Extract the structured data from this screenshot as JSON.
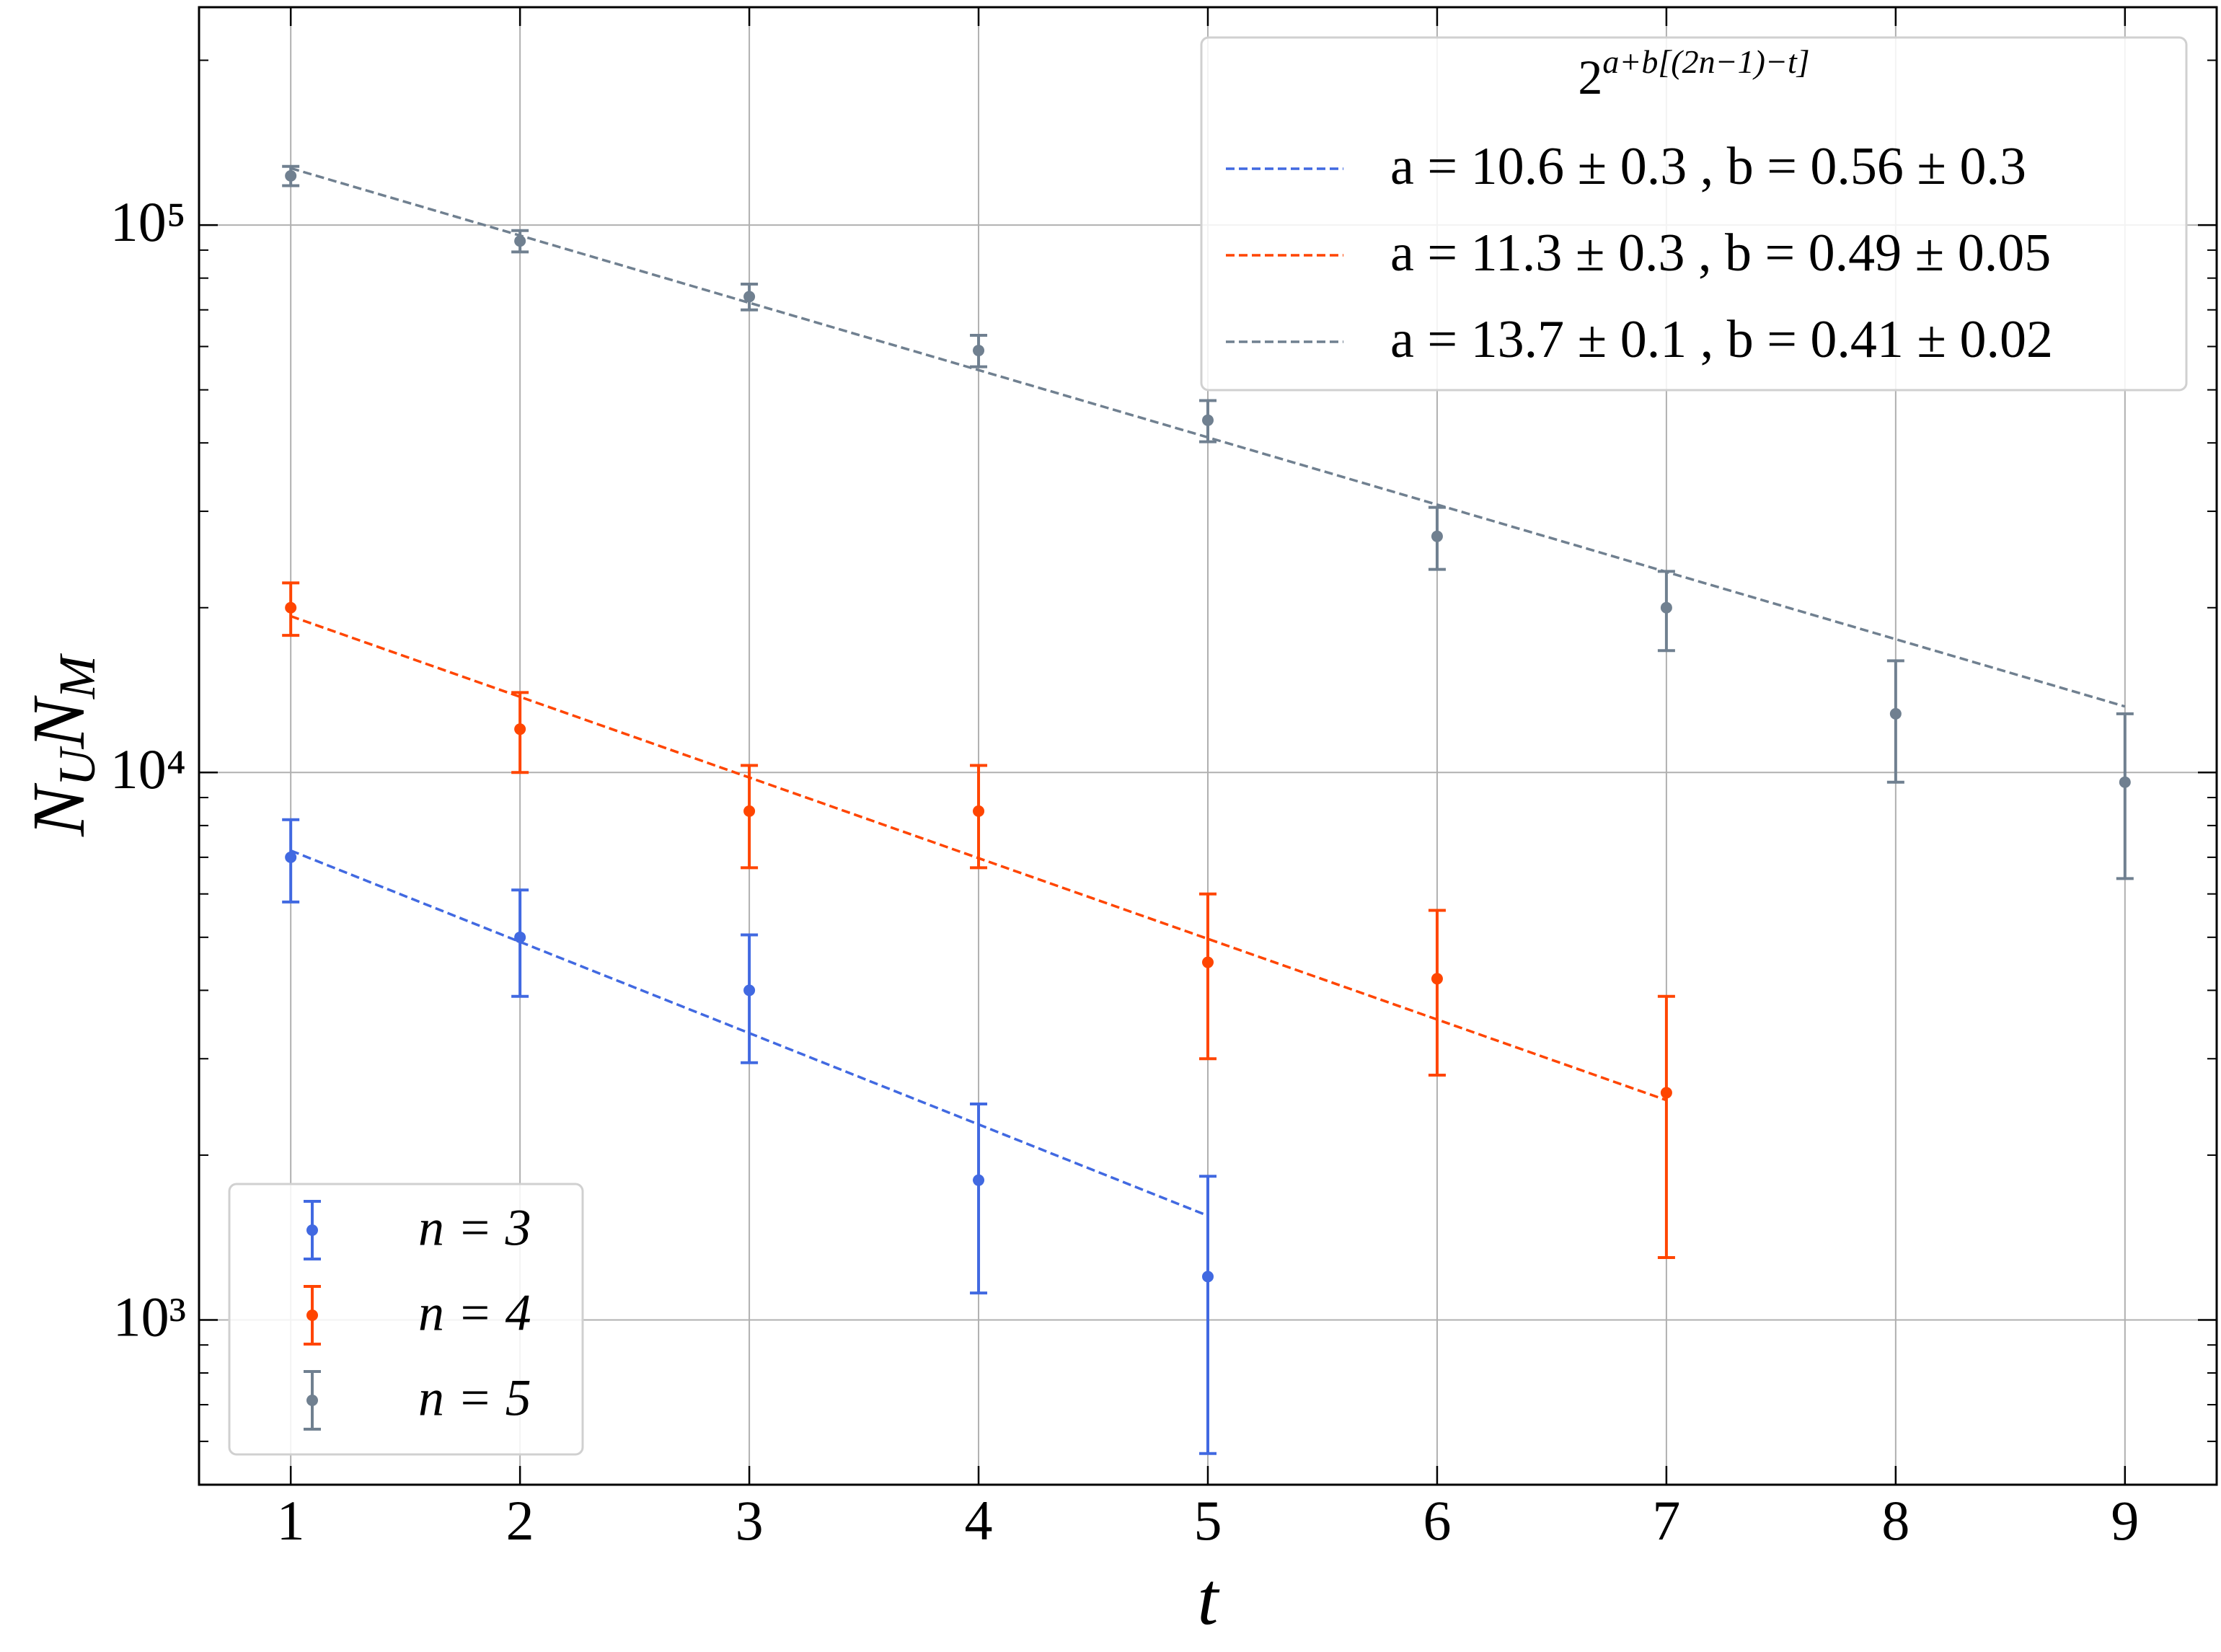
{
  "chart_data": {
    "type": "errorbar",
    "xlabel": "t",
    "ylabel": [
      "N",
      "U",
      "N",
      "M"
    ],
    "xlim": [
      0.6,
      9.4
    ],
    "xticks": [
      1,
      2,
      3,
      4,
      5,
      6,
      7,
      8,
      9
    ],
    "ylim": [
      500,
      250000
    ],
    "log_y": true,
    "grid": true,
    "yticks": [
      {
        "value": 1000,
        "label": "10³"
      },
      {
        "value": 10000,
        "label": "10⁴"
      },
      {
        "value": 100000,
        "label": "10⁵"
      }
    ],
    "legend_loc": "lower left",
    "series": [
      {
        "name": "n = 3",
        "color": "#4169e1",
        "x": [
          1,
          2,
          3,
          4,
          5
        ],
        "values": [
          7000,
          5000,
          4000,
          1800,
          1200
        ],
        "errors": [
          1200,
          1100,
          1050,
          680,
          630
        ]
      },
      {
        "name": "n = 4",
        "color": "#ff4500",
        "x": [
          1,
          2,
          3,
          4,
          5,
          6,
          7
        ],
        "values": [
          20000,
          12000,
          8500,
          8500,
          4500,
          4200,
          2600
        ],
        "errors": [
          2200,
          2000,
          1800,
          1800,
          1500,
          1400,
          1300
        ]
      },
      {
        "name": "n = 5",
        "color": "#708090",
        "x": [
          1,
          2,
          3,
          4,
          5,
          6,
          7,
          8,
          9
        ],
        "values": [
          123000,
          93500,
          74000,
          59000,
          44000,
          27000,
          20000,
          12800,
          9600
        ],
        "errors": [
          5000,
          4200,
          4000,
          3900,
          3800,
          3500,
          3300,
          3200,
          3200
        ]
      }
    ],
    "fit_legend_loc": "upper right",
    "fit_title_base": "2",
    "fit_title_exponent": "a+b[(2n−1)−t]",
    "fits": [
      {
        "name": "a = 10.6 ± 0.3 , b = 0.56 ± 0.3",
        "color": "#4169e1",
        "x": [
          1,
          5
        ],
        "values": [
          7200,
          1550
        ]
      },
      {
        "name": "a = 11.3 ± 0.3 , b = 0.49 ± 0.05",
        "color": "#ff4500",
        "x": [
          1,
          7
        ],
        "values": [
          19300,
          2520
        ]
      },
      {
        "name": "a = 13.7 ± 0.1 , b = 0.41 ± 0.02",
        "color": "#708090",
        "x": [
          1,
          9
        ],
        "values": [
          127000,
          13200
        ]
      }
    ]
  }
}
